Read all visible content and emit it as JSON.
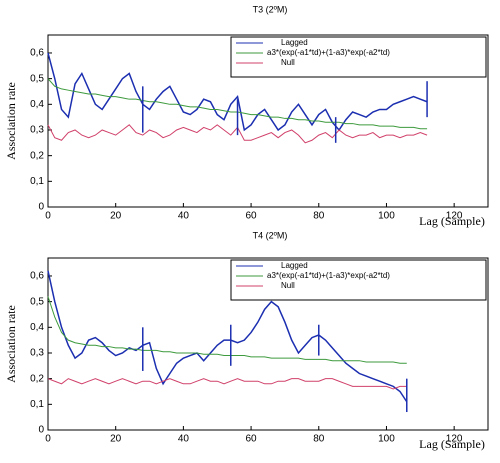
{
  "chart_data": [
    {
      "type": "line",
      "title": "T3 (2ºM)",
      "xlabel": "Lag (Sample)",
      "ylabel": "Association rate",
      "xlim": [
        0,
        130
      ],
      "xticks": [
        0,
        20,
        40,
        60,
        80,
        100,
        120
      ],
      "ylim": [
        0,
        0.67
      ],
      "yticks": [
        0,
        {
          "value": 0.1,
          "label": "0,1"
        },
        {
          "value": 0.2,
          "label": "0,2"
        },
        {
          "value": 0.3,
          "label": "0,3"
        },
        {
          "value": 0.4,
          "label": "0,4"
        },
        {
          "value": 0.5,
          "label": "0,5"
        },
        {
          "value": 0.6,
          "label": "0,6"
        }
      ],
      "legend": "upper right",
      "x": [
        0,
        2,
        4,
        6,
        8,
        10,
        12,
        14,
        16,
        18,
        20,
        22,
        24,
        26,
        28,
        30,
        32,
        34,
        36,
        38,
        40,
        42,
        44,
        46,
        48,
        50,
        52,
        54,
        56,
        58,
        60,
        62,
        64,
        66,
        68,
        70,
        72,
        74,
        76,
        78,
        80,
        82,
        84,
        86,
        88,
        90,
        92,
        94,
        96,
        98,
        100,
        102,
        104,
        106,
        108,
        110,
        112
      ],
      "series": [
        {
          "name": "Lagged",
          "color": "#1c2fb0",
          "values": [
            0.6,
            0.5,
            0.38,
            0.35,
            0.48,
            0.52,
            0.46,
            0.4,
            0.38,
            0.42,
            0.46,
            0.5,
            0.52,
            0.45,
            0.4,
            0.38,
            0.42,
            0.45,
            0.47,
            0.42,
            0.37,
            0.36,
            0.38,
            0.42,
            0.41,
            0.36,
            0.34,
            0.4,
            0.43,
            0.3,
            0.32,
            0.36,
            0.38,
            0.34,
            0.3,
            0.32,
            0.37,
            0.4,
            0.36,
            0.32,
            0.36,
            0.38,
            0.33,
            0.3,
            0.34,
            0.37,
            0.36,
            0.35,
            0.37,
            0.38,
            0.38,
            0.4,
            0.41,
            0.42,
            0.43,
            0.42,
            0.41
          ]
        },
        {
          "name": "a3*(exp(-a1*td)+(1-a3)*exp(-a2*td)",
          "color": "#3d9a3d",
          "values": [
            0.5,
            0.47,
            0.46,
            0.455,
            0.45,
            0.445,
            0.44,
            0.44,
            0.435,
            0.43,
            0.43,
            0.425,
            0.42,
            0.42,
            0.415,
            0.41,
            0.41,
            0.405,
            0.4,
            0.4,
            0.395,
            0.39,
            0.39,
            0.385,
            0.38,
            0.38,
            0.375,
            0.37,
            0.37,
            0.365,
            0.36,
            0.36,
            0.355,
            0.35,
            0.35,
            0.345,
            0.345,
            0.34,
            0.34,
            0.335,
            0.335,
            0.33,
            0.33,
            0.33,
            0.325,
            0.325,
            0.32,
            0.32,
            0.32,
            0.315,
            0.315,
            0.315,
            0.31,
            0.31,
            0.31,
            0.305,
            0.305
          ]
        },
        {
          "name": "Null",
          "color": "#d0406a",
          "values": [
            0.32,
            0.27,
            0.26,
            0.29,
            0.3,
            0.28,
            0.27,
            0.28,
            0.3,
            0.29,
            0.28,
            0.3,
            0.32,
            0.29,
            0.28,
            0.3,
            0.29,
            0.27,
            0.28,
            0.3,
            0.31,
            0.3,
            0.29,
            0.31,
            0.3,
            0.32,
            0.3,
            0.28,
            0.31,
            0.26,
            0.26,
            0.27,
            0.28,
            0.29,
            0.27,
            0.29,
            0.3,
            0.28,
            0.25,
            0.26,
            0.28,
            0.29,
            0.27,
            0.3,
            0.28,
            0.27,
            0.28,
            0.28,
            0.29,
            0.27,
            0.28,
            0.28,
            0.27,
            0.28,
            0.28,
            0.29,
            0.28
          ]
        }
      ],
      "vlines": [
        {
          "x": 28,
          "ymin": 0.29,
          "ymax": 0.47
        },
        {
          "x": 56,
          "ymin": 0.28,
          "ymax": 0.42
        },
        {
          "x": 85,
          "ymin": 0.25,
          "ymax": 0.35
        },
        {
          "x": 112,
          "ymin": 0.35,
          "ymax": 0.49
        }
      ]
    },
    {
      "type": "line",
      "title": "T4 (2ºM)",
      "xlabel": "Lag (Sample)",
      "ylabel": "Association rate",
      "xlim": [
        0,
        130
      ],
      "xticks": [
        0,
        20,
        40,
        60,
        80,
        100,
        120
      ],
      "ylim": [
        0,
        0.67
      ],
      "yticks": [
        0,
        {
          "value": 0.1,
          "label": "0,1"
        },
        {
          "value": 0.2,
          "label": "0,2"
        },
        {
          "value": 0.3,
          "label": "0,3"
        },
        {
          "value": 0.4,
          "label": "0,4"
        },
        {
          "value": 0.5,
          "label": "0,5"
        },
        {
          "value": 0.6,
          "label": "0,6"
        }
      ],
      "legend": "upper right",
      "x": [
        0,
        2,
        4,
        6,
        8,
        10,
        12,
        14,
        16,
        18,
        20,
        22,
        24,
        26,
        28,
        30,
        32,
        34,
        36,
        38,
        40,
        42,
        44,
        46,
        48,
        50,
        52,
        54,
        56,
        58,
        60,
        62,
        64,
        66,
        68,
        70,
        72,
        74,
        76,
        78,
        80,
        82,
        84,
        86,
        88,
        90,
        92,
        94,
        96,
        98,
        100,
        102,
        104,
        106
      ],
      "series": [
        {
          "name": "Lagged",
          "color": "#1c2fb0",
          "values": [
            0.62,
            0.5,
            0.4,
            0.33,
            0.28,
            0.3,
            0.35,
            0.36,
            0.34,
            0.31,
            0.29,
            0.3,
            0.32,
            0.31,
            0.33,
            0.34,
            0.24,
            0.18,
            0.22,
            0.26,
            0.28,
            0.29,
            0.3,
            0.27,
            0.3,
            0.33,
            0.35,
            0.35,
            0.34,
            0.35,
            0.38,
            0.42,
            0.47,
            0.5,
            0.48,
            0.42,
            0.35,
            0.3,
            0.33,
            0.36,
            0.37,
            0.35,
            0.32,
            0.29,
            0.26,
            0.24,
            0.22,
            0.21,
            0.2,
            0.19,
            0.18,
            0.17,
            0.15,
            0.11
          ]
        },
        {
          "name": "a3*(exp(-a1*td)+(1-a3)*exp(-a2*td)",
          "color": "#3d9a3d",
          "values": [
            0.52,
            0.44,
            0.38,
            0.35,
            0.34,
            0.335,
            0.33,
            0.33,
            0.325,
            0.325,
            0.32,
            0.32,
            0.315,
            0.315,
            0.31,
            0.31,
            0.31,
            0.305,
            0.305,
            0.3,
            0.3,
            0.3,
            0.3,
            0.295,
            0.295,
            0.295,
            0.29,
            0.29,
            0.29,
            0.29,
            0.285,
            0.285,
            0.285,
            0.28,
            0.28,
            0.28,
            0.28,
            0.28,
            0.275,
            0.275,
            0.275,
            0.275,
            0.27,
            0.27,
            0.27,
            0.27,
            0.27,
            0.265,
            0.265,
            0.265,
            0.265,
            0.265,
            0.26,
            0.26
          ]
        },
        {
          "name": "Null",
          "color": "#d0406a",
          "values": [
            0.2,
            0.19,
            0.18,
            0.2,
            0.19,
            0.18,
            0.19,
            0.2,
            0.19,
            0.18,
            0.19,
            0.2,
            0.19,
            0.18,
            0.19,
            0.19,
            0.18,
            0.19,
            0.2,
            0.19,
            0.18,
            0.18,
            0.19,
            0.2,
            0.19,
            0.19,
            0.18,
            0.19,
            0.2,
            0.19,
            0.19,
            0.19,
            0.18,
            0.18,
            0.19,
            0.19,
            0.2,
            0.2,
            0.19,
            0.19,
            0.19,
            0.2,
            0.2,
            0.19,
            0.18,
            0.17,
            0.17,
            0.17,
            0.17,
            0.17,
            0.17,
            0.16,
            0.17,
            0.17
          ]
        }
      ],
      "vlines": [
        {
          "x": 28,
          "ymin": 0.23,
          "ymax": 0.4
        },
        {
          "x": 54,
          "ymin": 0.25,
          "ymax": 0.41
        },
        {
          "x": 80,
          "ymin": 0.29,
          "ymax": 0.41
        },
        {
          "x": 106,
          "ymin": 0.07,
          "ymax": 0.2
        }
      ]
    }
  ]
}
